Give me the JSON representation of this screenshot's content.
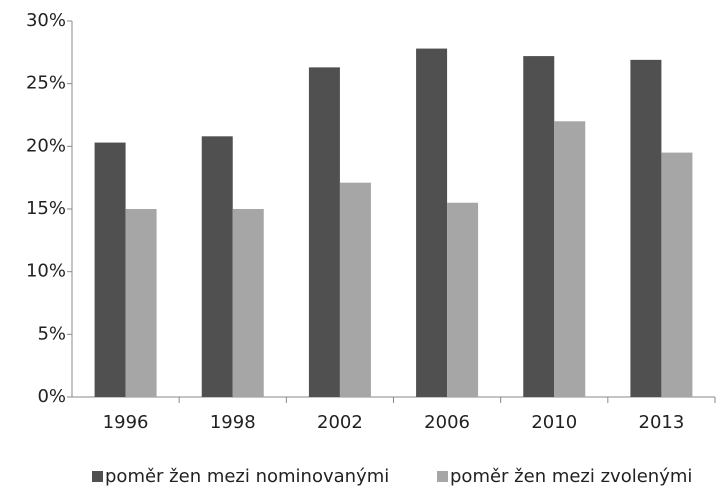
{
  "chart_data": {
    "type": "bar",
    "categories": [
      "1996",
      "1998",
      "2002",
      "2006",
      "2010",
      "2013"
    ],
    "series": [
      {
        "name": "poměr žen mezi nominovanými",
        "color": "#505050",
        "values": [
          20.3,
          20.8,
          26.3,
          27.8,
          27.2,
          26.9
        ]
      },
      {
        "name": "poměr žen mezi zvolenými",
        "color": "#a6a6a6",
        "values": [
          15.0,
          15.0,
          17.1,
          15.5,
          22.0,
          19.5
        ]
      }
    ],
    "ylim": [
      0,
      30
    ],
    "yticks": [
      {
        "value": 0,
        "label": "0%"
      },
      {
        "value": 5,
        "label": "5%"
      },
      {
        "value": 10,
        "label": "10%"
      },
      {
        "value": 15,
        "label": "15%"
      },
      {
        "value": 20,
        "label": "20%"
      },
      {
        "value": 25,
        "label": "25%"
      },
      {
        "value": 30,
        "label": "30%"
      }
    ],
    "grid": false,
    "legend": "bottom"
  }
}
